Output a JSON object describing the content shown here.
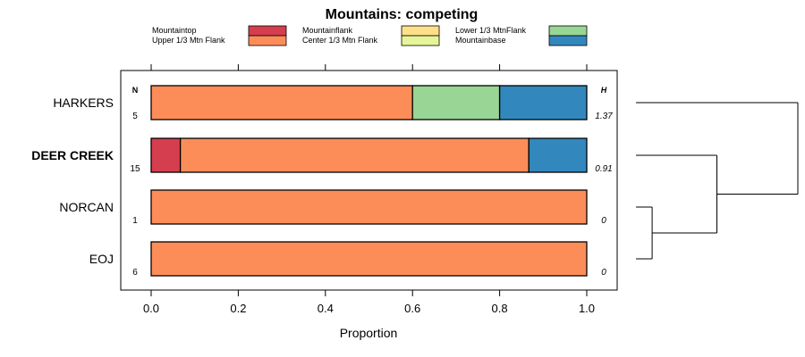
{
  "chart_data": {
    "type": "bar",
    "orientation": "horizontal",
    "stacked": true,
    "title": "Mountains: competing",
    "xlabel": "Proportion",
    "ylabel": "",
    "xlim": [
      0,
      1
    ],
    "xticks": [
      "0.0",
      "0.2",
      "0.4",
      "0.6",
      "0.8",
      "1.0"
    ],
    "n_header": "N",
    "h_header": "H",
    "legend_position": "top",
    "categories_legend": [
      {
        "label": "Mountaintop",
        "color": "#d53e4f"
      },
      {
        "label": "Upper 1/3 Mtn Flank",
        "color": "#fc8d59"
      },
      {
        "label": "Mountainflank",
        "color": "#fee08b"
      },
      {
        "label": "Center 1/3 Mtn Flank",
        "color": "#e6f598"
      },
      {
        "label": "Lower 1/3 MtnFlank",
        "color": "#99d594"
      },
      {
        "label": "Mountainbase",
        "color": "#3288bd"
      }
    ],
    "rows": [
      {
        "label": "HARKERS",
        "bold": false,
        "n": "5",
        "h": "1.37",
        "segments": [
          {
            "category": "Upper 1/3 Mtn Flank",
            "value": 0.6
          },
          {
            "category": "Lower 1/3 MtnFlank",
            "value": 0.2
          },
          {
            "category": "Mountainbase",
            "value": 0.2
          }
        ]
      },
      {
        "label": "DEER CREEK",
        "bold": true,
        "n": "15",
        "h": "0.91",
        "segments": [
          {
            "category": "Mountaintop",
            "value": 0.067
          },
          {
            "category": "Upper 1/3 Mtn Flank",
            "value": 0.8
          },
          {
            "category": "Mountainbase",
            "value": 0.133
          }
        ]
      },
      {
        "label": "NORCAN",
        "bold": false,
        "n": "1",
        "h": "0",
        "segments": [
          {
            "category": "Upper 1/3 Mtn Flank",
            "value": 1.0
          }
        ]
      },
      {
        "label": "EOJ",
        "bold": false,
        "n": "6",
        "h": "0",
        "segments": [
          {
            "category": "Upper 1/3 Mtn Flank",
            "value": 1.0
          }
        ]
      }
    ],
    "dendrogram": {
      "description": "hierarchical clustering of rows",
      "merges": [
        {
          "left": "NORCAN",
          "right": "EOJ",
          "height": 0.1
        },
        {
          "left": "DEER CREEK",
          "right": "NORCAN+EOJ",
          "height": 0.5
        },
        {
          "left": "HARKERS",
          "right": "DEER CREEK+NORCAN+EOJ",
          "height": 1.0
        }
      ]
    }
  }
}
